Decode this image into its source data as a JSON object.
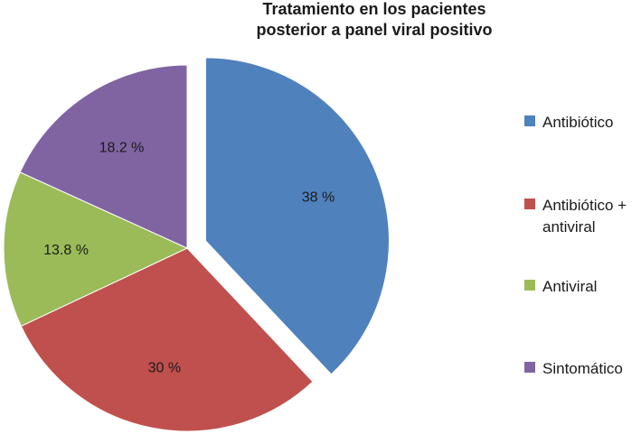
{
  "chart_data": {
    "type": "pie",
    "title_lines": [
      "Tratamiento en los pacientes",
      "posterior a panel viral positivo"
    ],
    "slices": [
      {
        "label": "Antibiótico",
        "value": 38,
        "display": "38 %",
        "color": "#4f81bd",
        "exploded": true
      },
      {
        "label": "Antibiótico + antiviral",
        "label_lines": [
          "Antibiótico +",
          "antiviral"
        ],
        "value": 30,
        "display": "30 %",
        "color": "#c0504d",
        "exploded": false
      },
      {
        "label": "Antiviral",
        "value": 13.8,
        "display": "13.8 %",
        "color": "#9bbb59",
        "exploded": false
      },
      {
        "label": "Sintomático",
        "value": 18.2,
        "display": "18.2 %",
        "color": "#8064a2",
        "exploded": false
      }
    ],
    "legend_position": "right"
  }
}
